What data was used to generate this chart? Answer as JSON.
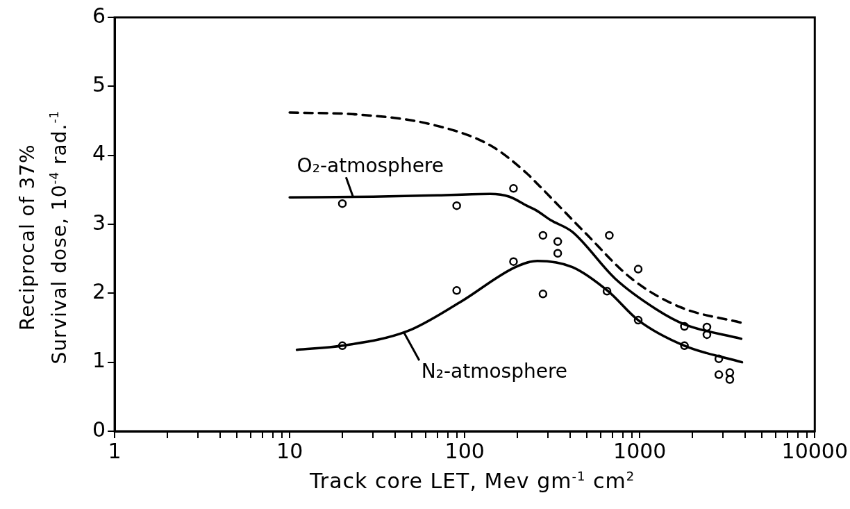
{
  "chart_data": {
    "type": "line",
    "xlabel": "Track core LET, Mev gm$^{-1}$ cm$^{2}$",
    "ylabel": "Reciprocal of 37%\nSurvival dose, 10$^{-4}$ rad.$^{-1}$",
    "log": "x",
    "grid": false,
    "legend": false,
    "xlim": [
      1,
      10000
    ],
    "xticks": [
      1,
      {
        "value": 2,
        "label": null
      },
      {
        "value": 3,
        "label": null
      },
      {
        "value": 4,
        "label": null
      },
      {
        "value": 5,
        "label": null
      },
      {
        "value": 6,
        "label": null
      },
      {
        "value": 7,
        "label": null
      },
      {
        "value": 8,
        "label": null
      },
      {
        "value": 9,
        "label": null
      },
      10,
      {
        "value": 20,
        "label": null
      },
      {
        "value": 30,
        "label": null
      },
      {
        "value": 40,
        "label": null
      },
      {
        "value": 50,
        "label": null
      },
      {
        "value": 60,
        "label": null
      },
      {
        "value": 70,
        "label": null
      },
      {
        "value": 80,
        "label": null
      },
      {
        "value": 90,
        "label": null
      },
      100,
      {
        "value": 200,
        "label": null
      },
      {
        "value": 300,
        "label": null
      },
      {
        "value": 400,
        "label": null
      },
      {
        "value": 500,
        "label": null
      },
      {
        "value": 600,
        "label": null
      },
      {
        "value": 700,
        "label": null
      },
      {
        "value": 800,
        "label": null
      },
      {
        "value": 900,
        "label": null
      },
      1000,
      {
        "value": 2000,
        "label": null
      },
      {
        "value": 3000,
        "label": null
      },
      {
        "value": 4000,
        "label": null
      },
      {
        "value": 5000,
        "label": null
      },
      {
        "value": 6000,
        "label": null
      },
      {
        "value": 7000,
        "label": null
      },
      {
        "value": 8000,
        "label": null
      },
      {
        "value": 9000,
        "label": null
      },
      10000
    ],
    "ylim": [
      0,
      6
    ],
    "yticks": [
      0,
      1,
      2,
      3,
      4,
      5,
      6
    ],
    "series": [
      {
        "color": "#000000",
        "line_style": "dashed",
        "marker": "none",
        "x": [
          10,
          25,
          64,
          141,
          226,
          257,
          482,
          900,
          1700,
          3840
        ],
        "values": [
          4.62,
          4.59,
          4.45,
          4.14,
          3.74,
          3.6,
          2.89,
          2.21,
          1.8,
          1.57
        ]
      },
      {
        "color": "#000000",
        "line_style": "solid",
        "marker": "none",
        "x": [
          10,
          30,
          70,
          140,
          180,
          226,
          257,
          310,
          412,
          725,
          1240,
          1800,
          3800
        ],
        "values": [
          3.39,
          3.4,
          3.42,
          3.44,
          3.4,
          3.27,
          3.2,
          3.06,
          2.89,
          2.21,
          1.77,
          1.55,
          1.34
        ]
      },
      {
        "color": "#000000",
        "line_style": "solid",
        "marker": "none",
        "x": [
          11,
          20,
          47,
          94,
          195,
          260,
          412,
          660,
          980,
          1800,
          3840
        ],
        "values": [
          1.18,
          1.24,
          1.45,
          1.87,
          2.38,
          2.47,
          2.38,
          2.03,
          1.61,
          1.24,
          1.0
        ]
      },
      {
        "type": "scatter",
        "color": "#000000",
        "marker": "circle",
        "x": [
          20,
          90,
          190,
          280,
          340,
          670,
          980,
          1800,
          2420,
          2830
        ],
        "values": [
          3.3,
          3.27,
          3.52,
          2.84,
          2.75,
          2.84,
          2.35,
          1.52,
          1.51,
          1.05
        ]
      },
      {
        "type": "scatter",
        "color": "#000000",
        "marker": "circle",
        "x": [
          20,
          90,
          190,
          280,
          340,
          650,
          980,
          1800,
          2420,
          2830,
          3270,
          3270
        ],
        "values": [
          1.24,
          2.04,
          2.46,
          1.99,
          2.58,
          2.03,
          1.61,
          1.24,
          1.4,
          0.82,
          0.85,
          0.75
        ]
      }
    ],
    "annotations": [
      {
        "text": "O₂-atmosphere",
        "x": 23,
        "y": 3.4
      },
      {
        "text": "N₂-atmosphere",
        "x": 45,
        "y": 1.43
      }
    ]
  }
}
